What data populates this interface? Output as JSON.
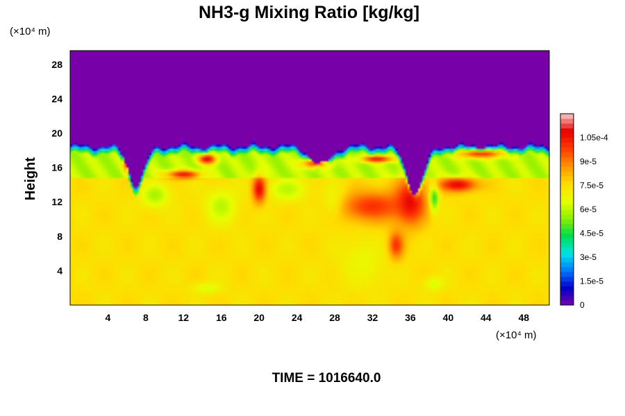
{
  "chart_data": {
    "type": "heatmap",
    "title": "NH3-g Mixing Ratio [kg/kg]",
    "xlabel": "",
    "ylabel": "Height",
    "x_unit": "(×10⁴ m)",
    "y_unit": "(×10⁴ m)",
    "x_ticks": [
      4,
      8,
      12,
      16,
      20,
      24,
      28,
      32,
      36,
      40,
      44,
      48
    ],
    "y_ticks": [
      4,
      8,
      12,
      16,
      20,
      24,
      28
    ],
    "xlim": [
      0,
      50.7
    ],
    "ylim": [
      0,
      29.6
    ],
    "colorbar": {
      "labels": [
        "0",
        "1.5e-5",
        "3e-5",
        "4.5e-5",
        "6e-5",
        "7.5e-5",
        "9e-5",
        "1.05e-4"
      ],
      "values": [
        0,
        1.5e-05,
        3e-05,
        4.5e-05,
        6e-05,
        7.5e-05,
        9e-05,
        0.000105
      ],
      "range": [
        0,
        0.00012
      ],
      "colors": [
        "#7800a8",
        "#0000c8",
        "#0078ff",
        "#00e6e6",
        "#00dc50",
        "#8cf000",
        "#e6ff00",
        "#ffdc00",
        "#ff9600",
        "#ff3c00",
        "#e60000",
        "#ffc8c8"
      ]
    },
    "field": {
      "background_value": 7.5e-05,
      "upper_value": 0,
      "interface_height": 18.5,
      "band_top": 18.0,
      "band_bottom": 14.8,
      "band_value": 6e-05,
      "troughs": [
        {
          "x": 7.0,
          "depth": 4.5,
          "width": 1.2
        },
        {
          "x": 26.5,
          "depth": 2.2,
          "width": 1.5
        },
        {
          "x": 36.5,
          "depth": 5.5,
          "width": 1.3
        }
      ],
      "high_patches": [
        {
          "x": 6.0,
          "y": 16.5,
          "rx": 0.4,
          "ry": 1.0,
          "v": 0.000108
        },
        {
          "x": 14.5,
          "y": 17.0,
          "rx": 1.0,
          "ry": 0.6,
          "v": 0.000108
        },
        {
          "x": 12.0,
          "y": 15.2,
          "rx": 2.0,
          "ry": 0.5,
          "v": 0.000105
        },
        {
          "x": 20.0,
          "y": 13.5,
          "rx": 0.7,
          "ry": 1.6,
          "v": 0.000108
        },
        {
          "x": 26.0,
          "y": 16.5,
          "rx": 1.5,
          "ry": 0.6,
          "v": 0.0001
        },
        {
          "x": 32.0,
          "y": 11.5,
          "rx": 3.5,
          "ry": 1.8,
          "v": 0.0001
        },
        {
          "x": 36.0,
          "y": 12.0,
          "rx": 1.6,
          "ry": 2.6,
          "v": 0.000108
        },
        {
          "x": 34.5,
          "y": 7.0,
          "rx": 0.8,
          "ry": 1.6,
          "v": 0.0001
        },
        {
          "x": 41.0,
          "y": 14.0,
          "rx": 2.0,
          "ry": 0.8,
          "v": 0.000108
        },
        {
          "x": 43.5,
          "y": 17.6,
          "rx": 2.5,
          "ry": 0.5,
          "v": 0.0001
        },
        {
          "x": 32.5,
          "y": 17.0,
          "rx": 1.8,
          "ry": 0.4,
          "v": 0.000105
        }
      ],
      "low_patches": [
        {
          "x": 9.0,
          "y": 12.8,
          "rx": 1.5,
          "ry": 1.4,
          "v": 5.8e-05
        },
        {
          "x": 16.0,
          "y": 11.5,
          "rx": 1.6,
          "ry": 2.0,
          "v": 6e-05
        },
        {
          "x": 23.0,
          "y": 13.5,
          "rx": 2.0,
          "ry": 1.3,
          "v": 6e-05
        },
        {
          "x": 28.0,
          "y": 12.0,
          "rx": 1.2,
          "ry": 1.8,
          "v": 6.2e-05
        },
        {
          "x": 38.5,
          "y": 12.5,
          "rx": 0.5,
          "ry": 1.6,
          "v": 4e-05
        },
        {
          "x": 14.5,
          "y": 2.0,
          "rx": 1.5,
          "ry": 0.6,
          "v": 6.4e-05
        },
        {
          "x": 38.5,
          "y": 2.5,
          "rx": 1.0,
          "ry": 0.8,
          "v": 6.4e-05
        },
        {
          "x": 31.0,
          "y": 5.0,
          "rx": 2.5,
          "ry": 3.0,
          "v": 6.8e-05
        }
      ]
    }
  },
  "footer": {
    "time_label": "TIME = 1016640.0"
  }
}
